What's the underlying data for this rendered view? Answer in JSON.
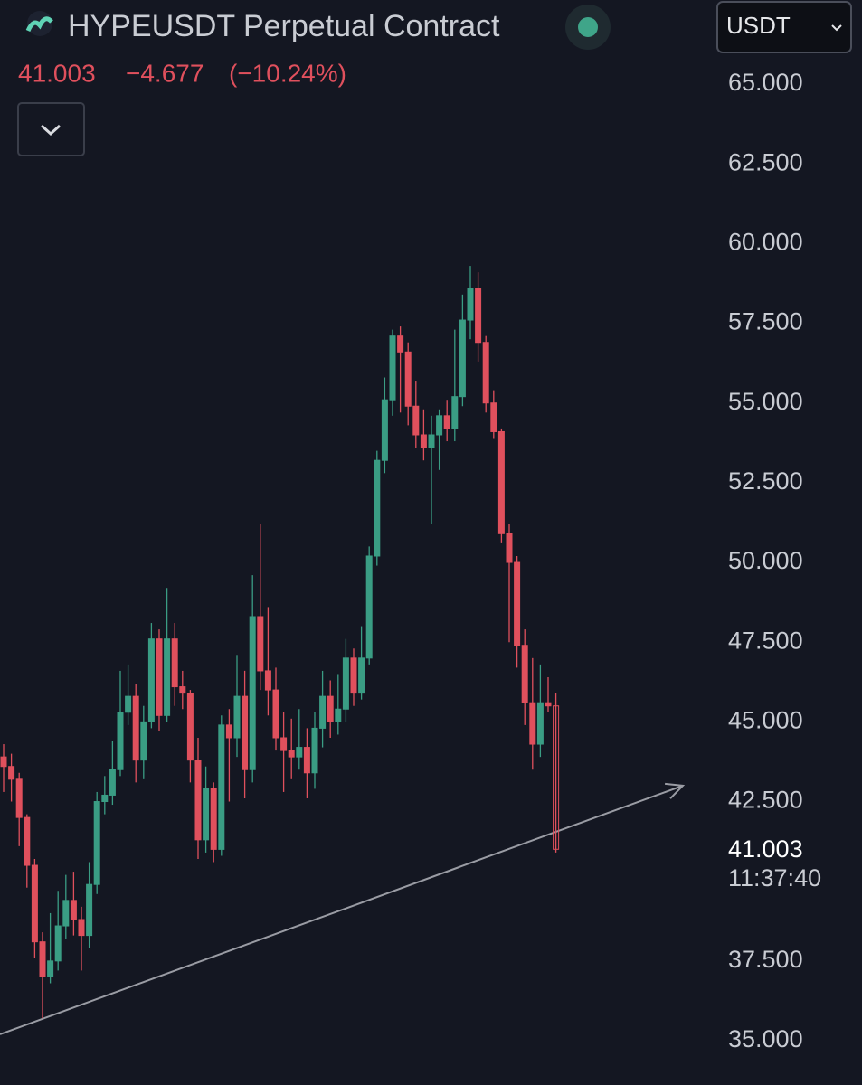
{
  "chart_data": {
    "type": "candlestick",
    "title": "HYPEUSDT Perpetual Contract",
    "currency": "USDT",
    "last_price": 41.003,
    "change": {
      "value": -4.677,
      "label": "−4.677"
    },
    "change_pct": {
      "value": -10.24,
      "label": "(−10.24%)"
    },
    "countdown": "11:37:40",
    "up_color": "#3a9d84",
    "down_color": "#e0505d",
    "ylim": [
      33.61,
      67.64
    ],
    "yticks": [
      {
        "value": 35,
        "label": "35.000"
      },
      {
        "value": 37.5,
        "label": "37.500"
      },
      {
        "value": 42.5,
        "label": "42.500"
      },
      {
        "value": 45,
        "label": "45.000"
      },
      {
        "value": 47.5,
        "label": "47.500"
      },
      {
        "value": 50,
        "label": "50.000"
      },
      {
        "value": 52.5,
        "label": "52.500"
      },
      {
        "value": 55,
        "label": "55.000"
      },
      {
        "value": 57.5,
        "label": "57.500"
      },
      {
        "value": 60,
        "label": "60.000"
      },
      {
        "value": 62.5,
        "label": "62.500"
      },
      {
        "value": 65,
        "label": "65.000"
      }
    ],
    "trendline": {
      "y_start": 35.2,
      "y_end": 43.0
    },
    "open": [
      43.9,
      43.6,
      43.2,
      42.0,
      40.5,
      38.1,
      37.0,
      37.5,
      38.6,
      39.4,
      38.8,
      38.3,
      39.9,
      42.5,
      42.7,
      43.5,
      45.3,
      45.8,
      43.8,
      45.0,
      47.6,
      45.2,
      47.6,
      46.1,
      45.9,
      43.8,
      41.3,
      42.9,
      41.0,
      44.9,
      44.5,
      45.8,
      43.5,
      48.3,
      46.6,
      46.0,
      44.5,
      44.1,
      43.9,
      44.2,
      43.4,
      44.8,
      45.8,
      45.0,
      45.4,
      47.0,
      45.9,
      47.0,
      50.2,
      53.2,
      55.1,
      57.1,
      56.6,
      54.9,
      54.0,
      53.6,
      54.0,
      54.6,
      54.2,
      55.2,
      57.6,
      58.6,
      56.9,
      55.0,
      54.1,
      50.9,
      50.0,
      47.4,
      45.6,
      44.3,
      45.6,
      45.5
    ],
    "high": [
      44.3,
      44.0,
      43.4,
      42.1,
      40.7,
      38.4,
      39.0,
      39.7,
      40.2,
      40.3,
      39.2,
      40.6,
      42.8,
      43.3,
      44.4,
      46.6,
      46.8,
      46.2,
      45.5,
      48.1,
      47.9,
      49.2,
      48.1,
      46.6,
      46.0,
      44.5,
      43.6,
      43.1,
      45.2,
      45.4,
      47.1,
      46.6,
      49.6,
      51.2,
      48.6,
      46.7,
      45.3,
      45.1,
      45.4,
      44.8,
      45.3,
      46.6,
      46.3,
      46.5,
      47.6,
      47.3,
      48.0,
      50.5,
      53.5,
      55.8,
      57.3,
      57.4,
      56.9,
      55.7,
      54.8,
      54.6,
      54.8,
      55.1,
      57.3,
      58.4,
      59.3,
      59.1,
      57.1,
      55.4,
      54.2,
      51.2,
      50.2,
      47.9,
      47.0,
      46.8,
      46.4,
      45.9
    ],
    "low": [
      42.8,
      42.5,
      41.1,
      39.8,
      37.6,
      35.7,
      36.8,
      37.2,
      38.2,
      38.3,
      37.2,
      37.9,
      39.6,
      42.1,
      42.4,
      43.3,
      44.9,
      43.1,
      43.2,
      44.8,
      44.7,
      45.0,
      45.5,
      45.4,
      43.1,
      40.7,
      40.9,
      40.6,
      40.8,
      42.5,
      43.9,
      42.6,
      43.1,
      46.0,
      45.2,
      44.1,
      42.8,
      43.2,
      43.5,
      42.6,
      42.9,
      44.2,
      44.5,
      44.6,
      45.0,
      45.5,
      45.7,
      46.8,
      49.9,
      52.8,
      54.6,
      54.7,
      54.3,
      53.6,
      53.2,
      51.2,
      52.9,
      53.8,
      53.8,
      54.9,
      57.0,
      56.3,
      54.7,
      53.9,
      50.6,
      47.5,
      46.7,
      44.9,
      43.5,
      43.9,
      45.3,
      40.9
    ],
    "close": [
      43.6,
      43.2,
      42.0,
      40.5,
      38.1,
      37.0,
      37.5,
      38.6,
      39.4,
      38.8,
      38.3,
      39.9,
      42.5,
      42.7,
      43.5,
      45.3,
      45.8,
      43.8,
      45.0,
      47.6,
      45.2,
      47.6,
      46.1,
      45.9,
      43.8,
      41.3,
      42.9,
      41.0,
      44.9,
      44.5,
      45.8,
      43.5,
      48.3,
      46.6,
      46.0,
      44.5,
      44.1,
      43.9,
      44.2,
      43.4,
      44.8,
      45.8,
      45.0,
      45.4,
      47.0,
      45.9,
      47.0,
      50.2,
      53.2,
      55.1,
      57.1,
      56.6,
      54.9,
      54.0,
      53.6,
      54.0,
      54.6,
      54.2,
      55.2,
      57.6,
      58.6,
      56.9,
      55.0,
      54.1,
      50.9,
      50.0,
      47.4,
      45.6,
      44.3,
      45.6,
      45.5,
      41.003
    ]
  }
}
